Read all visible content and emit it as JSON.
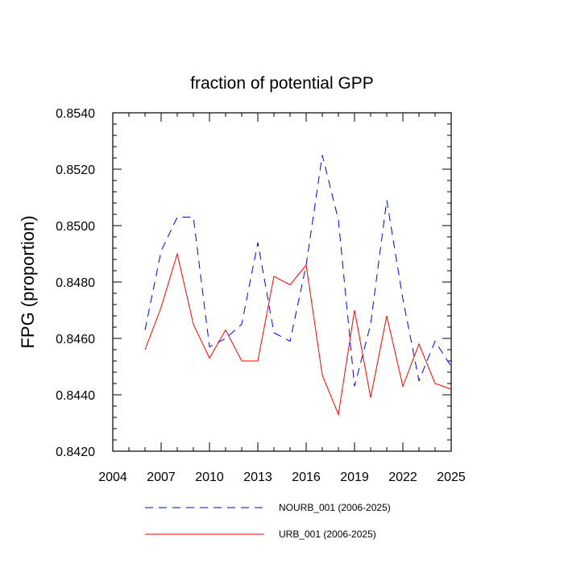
{
  "chart_data": {
    "type": "line",
    "title": "fraction of potential GPP",
    "xlabel": "",
    "ylabel": "FPG  (proportion)",
    "xlim": [
      2004,
      2025
    ],
    "ylim": [
      0.842,
      0.854
    ],
    "xticks": [
      2004,
      2007,
      2010,
      2013,
      2016,
      2019,
      2022,
      2025
    ],
    "yticks": [
      "0.8420",
      "0.8440",
      "0.8460",
      "0.8480",
      "0.8500",
      "0.8520",
      "0.8540"
    ],
    "grid": false,
    "legend_position": "bottom",
    "x": [
      2006,
      2007,
      2008,
      2009,
      2010,
      2011,
      2012,
      2013,
      2014,
      2015,
      2016,
      2017,
      2018,
      2019,
      2020,
      2021,
      2022,
      2023,
      2024,
      2025
    ],
    "series": [
      {
        "name": "NOURB_001 (2006-2025)",
        "color": "#0000ff",
        "dash": "dashed",
        "values": [
          0.8463,
          0.8491,
          0.8503,
          0.8503,
          0.8457,
          0.846,
          0.8465,
          0.8494,
          0.8462,
          0.8459,
          0.8486,
          0.8525,
          0.8502,
          0.8443,
          0.8465,
          0.8509,
          0.8474,
          0.8445,
          0.8459,
          0.845
        ]
      },
      {
        "name": "URB_001 (2006-2025)",
        "color": "#ff0000",
        "dash": "solid",
        "values": [
          0.8456,
          0.8471,
          0.849,
          0.8465,
          0.8453,
          0.8463,
          0.8452,
          0.8452,
          0.8482,
          0.8479,
          0.8486,
          0.8447,
          0.8433,
          0.847,
          0.8439,
          0.8468,
          0.8443,
          0.8458,
          0.8444,
          0.8442
        ]
      }
    ]
  }
}
